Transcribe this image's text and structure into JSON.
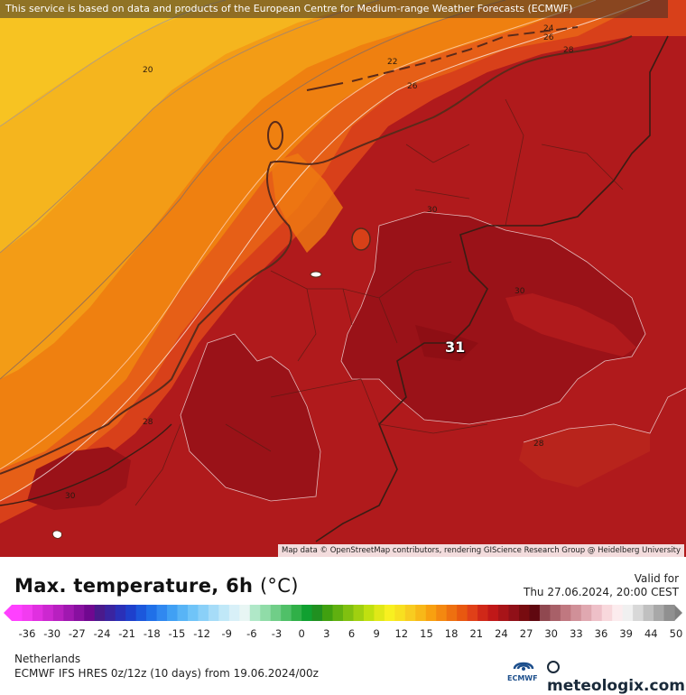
{
  "map": {
    "attribution_top": "This service is based on data and products of the European Centre for Medium-range Weather Forecasts (ECMWF)",
    "attribution_bottom": "Map data © OpenStreetMap contributors, rendering GIScience Research Group @ Heidelberg University",
    "peak_value": "31",
    "contour_labels": [
      "20",
      "22",
      "24",
      "26",
      "26",
      "28",
      "28",
      "30",
      "30",
      "30",
      "28",
      "30"
    ],
    "colors": {
      "t20": "#f5b51e",
      "t22": "#f39c16",
      "t24": "#ef8010",
      "t26": "#e05418",
      "t28": "#c22a1c",
      "t30": "#ae181c",
      "t31": "#8e0e14"
    }
  },
  "footer": {
    "title": "Max. temperature, 6h",
    "unit": "(°C)",
    "valid_label": "Valid for",
    "valid_time": "Thu 27.06.2024, 20:00 CEST",
    "region": "Netherlands",
    "model": "ECMWF IFS HRES 0z/12z (10 days) from  19.06.2024/00z",
    "ecmwf_label": "ECMWF",
    "brand": "meteologix.com",
    "brand_icon": "globe-icon",
    "scale_ticks": [
      "-36",
      "-30",
      "-27",
      "-24",
      "-21",
      "-18",
      "-15",
      "-12",
      "-9",
      "-6",
      "-3",
      "0",
      "3",
      "6",
      "9",
      "12",
      "15",
      "18",
      "21",
      "24",
      "27",
      "30",
      "33",
      "36",
      "39",
      "44",
      "50"
    ]
  }
}
